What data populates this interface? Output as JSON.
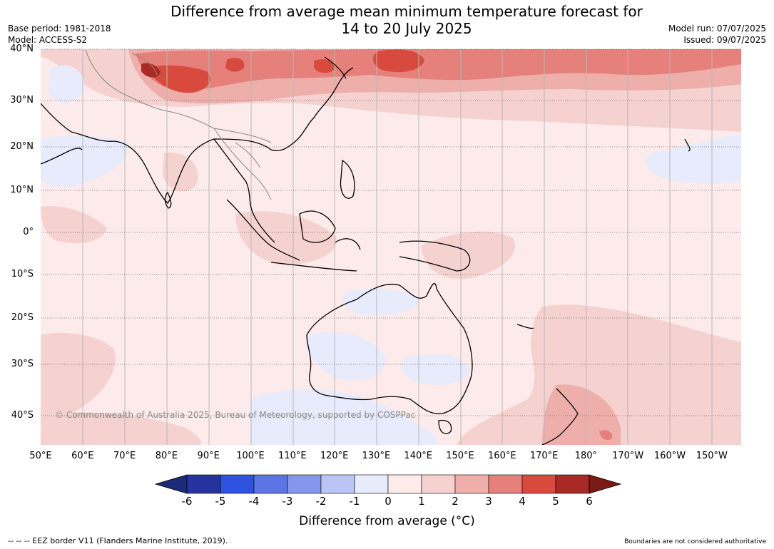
{
  "title_line1": "Difference from average mean minimum temperature forecast for",
  "title_line2": "14 to 20 July 2025",
  "base_period": "Base period: 1981-2018",
  "model": "Model: ACCESS-S2",
  "model_run": "Model run: 07/07/2025",
  "issued": "Issued: 09/07/2025",
  "copyright": "© Commonwealth of Australia 2025, Bureau of Meteorology, supported by COSPPac",
  "eez_note": "--  --  -- EEZ border V11 (Flanders Marine Institute, 2019).",
  "boundary_note": "Boundaries are not considered authoritative",
  "lat_labels": [
    "40°N",
    "30°N",
    "20°N",
    "10°N",
    "0°",
    "10°S",
    "20°S",
    "30°S",
    "40°S"
  ],
  "lon_labels": [
    "50°E",
    "60°E",
    "70°E",
    "80°E",
    "90°E",
    "100°E",
    "110°E",
    "120°E",
    "130°E",
    "140°E",
    "150°E",
    "160°E",
    "170°E",
    "180°",
    "170°W",
    "160°W",
    "150°W"
  ],
  "colorbar": {
    "title": "Difference from average (°C)",
    "tick_labels": [
      "-6",
      "-5",
      "-4",
      "-3",
      "-2",
      "-1",
      "0",
      "1",
      "2",
      "3",
      "4",
      "5",
      "6"
    ],
    "colors": [
      "#26339f",
      "#2f52e0",
      "#5b75e6",
      "#8597ed",
      "#bbc5f5",
      "#e8ebfb",
      "#fcebea",
      "#f5d1cf",
      "#eeaeaa",
      "#e5807b",
      "#d94a3e",
      "#a92a25"
    ],
    "under_color": "#1c2a78",
    "over_color": "#7a1b17"
  },
  "legend_text_color": "#8a8a8a"
}
